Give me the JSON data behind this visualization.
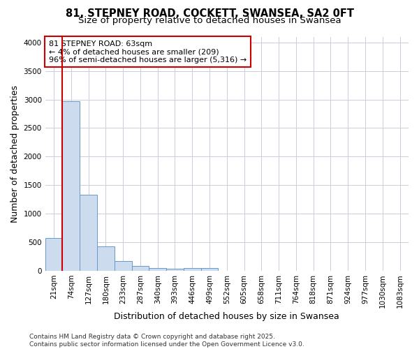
{
  "title_line1": "81, STEPNEY ROAD, COCKETT, SWANSEA, SA2 0FT",
  "title_line2": "Size of property relative to detached houses in Swansea",
  "xlabel": "Distribution of detached houses by size in Swansea",
  "ylabel": "Number of detached properties",
  "bar_color": "#ccdcee",
  "bar_edge_color": "#6699cc",
  "fig_background_color": "#ffffff",
  "plot_background_color": "#ffffff",
  "grid_color": "#ccccdd",
  "categories": [
    "21sqm",
    "74sqm",
    "127sqm",
    "180sqm",
    "233sqm",
    "287sqm",
    "340sqm",
    "393sqm",
    "446sqm",
    "499sqm",
    "552sqm",
    "605sqm",
    "658sqm",
    "711sqm",
    "764sqm",
    "818sqm",
    "871sqm",
    "924sqm",
    "977sqm",
    "1030sqm",
    "1083sqm"
  ],
  "values": [
    580,
    2970,
    1330,
    430,
    165,
    80,
    45,
    35,
    50,
    50,
    0,
    0,
    0,
    0,
    0,
    0,
    0,
    0,
    0,
    0,
    0
  ],
  "ylim": [
    0,
    4100
  ],
  "yticks": [
    0,
    500,
    1000,
    1500,
    2000,
    2500,
    3000,
    3500,
    4000
  ],
  "annotation_title": "81 STEPNEY ROAD: 63sqm",
  "annotation_line2": "← 4% of detached houses are smaller (209)",
  "annotation_line3": "96% of semi-detached houses are larger (5,316) →",
  "annotation_box_facecolor": "#ffffff",
  "annotation_box_edgecolor": "#cc0000",
  "vline_color": "#cc0000",
  "vline_x": 0.5,
  "footer_line1": "Contains HM Land Registry data © Crown copyright and database right 2025.",
  "footer_line2": "Contains public sector information licensed under the Open Government Licence v3.0.",
  "title_fontsize": 10.5,
  "subtitle_fontsize": 9.5,
  "axis_label_fontsize": 9,
  "tick_fontsize": 7.5,
  "annotation_fontsize": 8,
  "footer_fontsize": 6.5
}
